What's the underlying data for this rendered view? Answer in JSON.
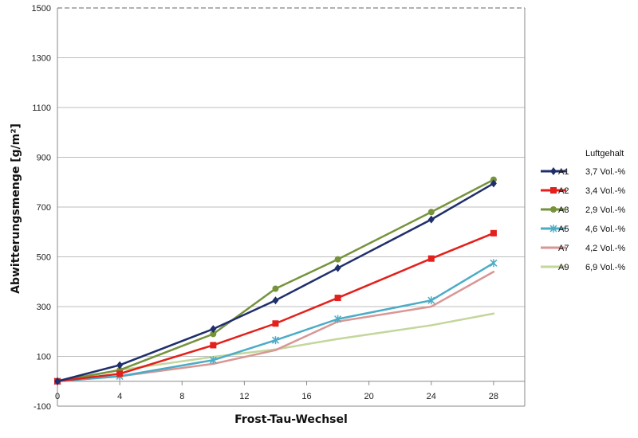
{
  "chart_data": {
    "type": "line",
    "xlabel": "Frost-Tau-Wechsel",
    "ylabel": "Abwitterungsmenge [g/m²]",
    "xlim": [
      0,
      30
    ],
    "ylim": [
      -100,
      1500
    ],
    "xticks": [
      "0",
      "4",
      "8",
      "12",
      "16",
      "20",
      "24",
      "28"
    ],
    "yticks": [
      "-100",
      "100",
      "300",
      "500",
      "700",
      "900",
      "1100",
      "1300",
      "1500"
    ],
    "grid": "horizontal",
    "legend_position": "right",
    "legend_title": "Luftgehalt",
    "series": [
      {
        "name": "A1",
        "air": "3,7 Vol.-%",
        "color": "#1f2f6b",
        "marker": "diamond",
        "x": [
          0,
          4,
          10,
          14,
          18,
          24,
          28
        ],
        "y": [
          0,
          65,
          210,
          325,
          455,
          650,
          795
        ]
      },
      {
        "name": "A2",
        "air": "3,4 Vol.-%",
        "color": "#e3201b",
        "marker": "square",
        "x": [
          0,
          4,
          10,
          14,
          18,
          24,
          28
        ],
        "y": [
          0,
          30,
          145,
          232,
          335,
          493,
          595
        ]
      },
      {
        "name": "A3",
        "air": "2,9 Vol.-%",
        "color": "#76933c",
        "marker": "circle",
        "x": [
          0,
          4,
          10,
          14,
          18,
          24,
          28
        ],
        "y": [
          0,
          45,
          190,
          372,
          490,
          680,
          810
        ]
      },
      {
        "name": "A5",
        "air": "4,6 Vol.-%",
        "color": "#4bacc6",
        "marker": "star",
        "x": [
          0,
          4,
          10,
          14,
          18,
          24,
          28
        ],
        "y": [
          0,
          20,
          85,
          165,
          250,
          325,
          475
        ]
      },
      {
        "name": "A7",
        "air": "4,2 Vol.-%",
        "color": "#d99694",
        "marker": "none",
        "x": [
          0,
          4,
          10,
          14,
          18,
          24,
          28
        ],
        "y": [
          0,
          20,
          70,
          125,
          240,
          300,
          440
        ]
      },
      {
        "name": "A9",
        "air": "6,9 Vol.-%",
        "color": "#c3d69b",
        "marker": "none",
        "x": [
          0,
          4,
          10,
          14,
          18,
          24,
          28
        ],
        "y": [
          0,
          45,
          98,
          128,
          170,
          225,
          272
        ]
      }
    ]
  }
}
